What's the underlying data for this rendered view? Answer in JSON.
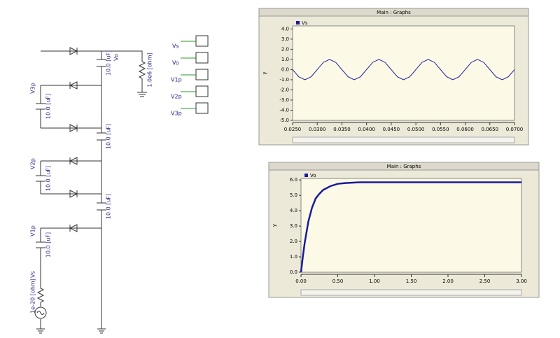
{
  "schematic": {
    "source_label": "Vs",
    "load_label": "Vo",
    "load_resistor": "1.0e6 [ohm]",
    "source_resistor": "1e-20 [ohm]",
    "node_labels": [
      "V3p",
      "V2p",
      "V1p"
    ],
    "capacitors": [
      "10.0 [uF]",
      "10.0 [uF]",
      "10.0 [uF]",
      "10.0 [uF]",
      "10.0 [uF]",
      "10.0 [uF]"
    ],
    "meters": [
      "Vs",
      "Vo",
      "V1p",
      "V2p",
      "V3p"
    ]
  },
  "chart_data": [
    {
      "type": "line",
      "title": "Main : Graphs",
      "y_label": "y",
      "x": [
        0.025,
        0.02625,
        0.0275,
        0.02875,
        0.03,
        0.03125,
        0.0325,
        0.03375,
        0.035,
        0.03625,
        0.0375,
        0.03875,
        0.04,
        0.04125,
        0.0425,
        0.04375,
        0.045,
        0.04625,
        0.0475,
        0.04875,
        0.05,
        0.05125,
        0.0525,
        0.05375,
        0.055,
        0.05625,
        0.0575,
        0.05875,
        0.06,
        0.06125,
        0.0625,
        0.06375,
        0.065,
        0.06625,
        0.0675,
        0.06875,
        0.07
      ],
      "series": [
        {
          "name": "Vs",
          "color": "#1a1a9c",
          "values": [
            0,
            -0.71,
            -1,
            -0.71,
            0,
            0.71,
            1,
            0.71,
            0,
            -0.71,
            -1,
            -0.71,
            0,
            0.71,
            1,
            0.71,
            0,
            -0.71,
            -1,
            -0.71,
            0,
            0.71,
            1,
            0.71,
            0,
            -0.71,
            -1,
            -0.71,
            0,
            0.71,
            1,
            0.71,
            0,
            -0.71,
            -1,
            -0.71,
            0
          ]
        }
      ],
      "xlim": [
        0.025,
        0.07
      ],
      "xticks": [
        {
          "value": 0.025,
          "label": "0.0250"
        },
        {
          "value": 0.03,
          "label": "0.0300"
        },
        {
          "value": 0.035,
          "label": "0.0350"
        },
        {
          "value": 0.04,
          "label": "0.0400"
        },
        {
          "value": 0.045,
          "label": "0.0450"
        },
        {
          "value": 0.05,
          "label": "0.0500"
        },
        {
          "value": 0.055,
          "label": "0.0550"
        },
        {
          "value": 0.06,
          "label": "0.0600"
        },
        {
          "value": 0.065,
          "label": "0.0650"
        },
        {
          "value": 0.07,
          "label": "0.0700"
        }
      ],
      "ylim": [
        -5,
        4.3
      ],
      "yticks": [
        {
          "value": 4,
          "label": "4.0"
        },
        {
          "value": 3,
          "label": "3.0"
        },
        {
          "value": 2,
          "label": "2.0"
        },
        {
          "value": 1,
          "label": "1.0"
        },
        {
          "value": 0,
          "label": "0.0"
        },
        {
          "value": -1,
          "label": "-1.0"
        },
        {
          "value": -2,
          "label": "-2.0"
        },
        {
          "value": -3,
          "label": "-3.0"
        },
        {
          "value": -4,
          "label": "-4.0"
        },
        {
          "value": -5,
          "label": "-5.0"
        }
      ]
    },
    {
      "type": "line",
      "title": "Main : Graphs",
      "y_label": "y",
      "x": [
        0,
        0.025,
        0.05,
        0.075,
        0.1,
        0.15,
        0.2,
        0.25,
        0.3,
        0.4,
        0.5,
        0.6,
        0.8,
        1.0,
        1.5,
        2.0,
        2.5,
        3.0
      ],
      "series": [
        {
          "name": "Vo",
          "color": "#1a1a9c",
          "values": [
            0,
            1.0,
            1.9,
            2.6,
            3.3,
            4.2,
            4.8,
            5.1,
            5.35,
            5.6,
            5.75,
            5.8,
            5.85,
            5.85,
            5.85,
            5.85,
            5.85,
            5.85
          ]
        }
      ],
      "xlim": [
        0,
        3
      ],
      "xticks": [
        {
          "value": 0,
          "label": "0.00"
        },
        {
          "value": 0.5,
          "label": "0.50"
        },
        {
          "value": 1,
          "label": "1.00"
        },
        {
          "value": 1.5,
          "label": "1.50"
        },
        {
          "value": 2,
          "label": "2.00"
        },
        {
          "value": 2.5,
          "label": "2.50"
        },
        {
          "value": 3,
          "label": "3.00"
        }
      ],
      "ylim": [
        0,
        6.1
      ],
      "yticks": [
        {
          "value": 0,
          "label": "0.0"
        },
        {
          "value": 1,
          "label": "1.0"
        },
        {
          "value": 2,
          "label": "2.0"
        },
        {
          "value": 3,
          "label": "3.0"
        },
        {
          "value": 4,
          "label": "4.0"
        },
        {
          "value": 5,
          "label": "5.0"
        },
        {
          "value": 6,
          "label": "6.0"
        }
      ]
    }
  ]
}
